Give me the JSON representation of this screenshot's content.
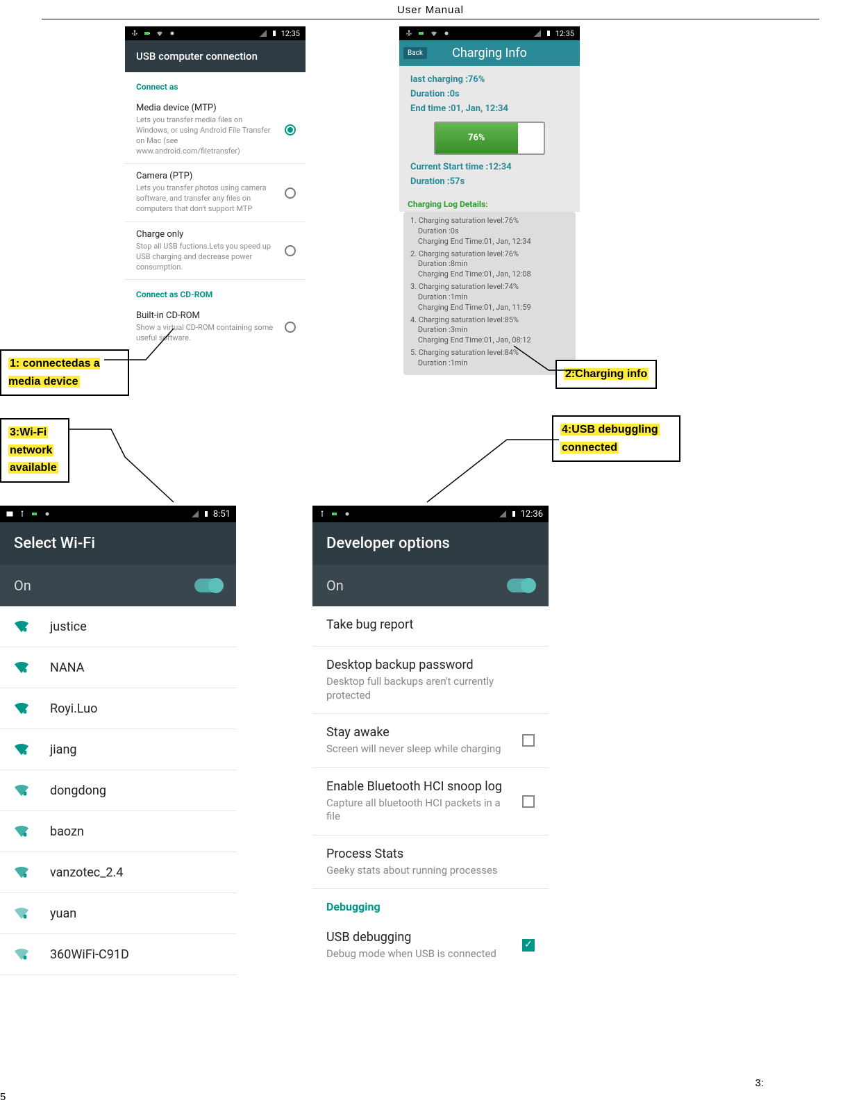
{
  "page_header": "User    Manual",
  "page_number": "5",
  "footer_right": "3:",
  "annotations": {
    "a1": "1:      connectedas      a media    device",
    "a2": "2:Charging info",
    "a3_l1": "3:Wi-Fi",
    "a3_l2": "network",
    "a3_l3": "available",
    "a4_l1": "4:USB    debuggling",
    "a4_l2": "connected"
  },
  "usb_screen": {
    "time": "12:35",
    "title": "USB computer connection",
    "section1": "Connect as",
    "opt1_title": "Media device (MTP)",
    "opt1_sub": "Lets you transfer media files on Windows, or using Android File Transfer on Mac (see www.android.com/filetransfer)",
    "opt2_title": "Camera (PTP)",
    "opt2_sub": "Lets you transfer photos using camera software, and transfer any files on computers that don't support MTP",
    "opt3_title": "Charge only",
    "opt3_sub": "Stop all USB fuctions.Lets you speed up USB charging and decrease power consumption.",
    "section2": "Connect as CD-ROM",
    "opt4_title": "Built-in CD-ROM",
    "opt4_sub": "Show a virtual CD-ROM containing some useful software."
  },
  "charging_screen": {
    "time": "12:35",
    "title": "Charging Info",
    "back": "Back",
    "last": "last charging :76%",
    "dur": "Duration :0s",
    "end": "End time :01, Jan, 12:34",
    "pct": "76%",
    "pct_width": 76,
    "cur_start": "Current Start time :12:34",
    "cur_dur": "Duration :57s",
    "log_hdr": "Charging Log Details:",
    "log": [
      {
        "a": "1. Charging saturation level:76%",
        "b": "Duration :0s",
        "c": "Charging End Time:01, Jan, 12:34"
      },
      {
        "a": "2. Charging saturation level:76%",
        "b": "Duration :8min",
        "c": "Charging End Time:01, Jan, 12:08"
      },
      {
        "a": "3. Charging saturation level:74%",
        "b": "Duration :1min",
        "c": "Charging End Time:01, Jan, 11:59"
      },
      {
        "a": "4. Charging saturation level:85%",
        "b": "Duration :3min",
        "c": "Charging End Time:01, Jan, 08:12"
      },
      {
        "a": "5. Charging saturation level:84%",
        "b": "Duration :1min",
        "c": ""
      }
    ]
  },
  "wifi_screen": {
    "time": "8:51",
    "title": "Select Wi-Fi",
    "on": "On",
    "nets": [
      "justice",
      "NANA",
      "Royi.Luo",
      "jiang",
      "dongdong",
      "baozn",
      "vanzotec_2.4",
      "yuan",
      "360WiFi-C91D"
    ],
    "strength": [
      4,
      4,
      4,
      4,
      3,
      3,
      3,
      2,
      2
    ]
  },
  "dev_screen": {
    "time": "12:36",
    "title": "Developer options",
    "on": "On",
    "r1": "Take bug report",
    "r2t": "Desktop backup password",
    "r2s": "Desktop full backups aren't currently protected",
    "r3t": "Stay awake",
    "r3s": "Screen will never sleep while charging",
    "r4t": "Enable Bluetooth HCI snoop log",
    "r4s": "Capture all bluetooth HCI packets in a file",
    "r5t": "Process Stats",
    "r5s": "Geeky stats about running processes",
    "sec": "Debugging",
    "r6t": "USB debugging",
    "r6s": "Debug mode when USB is connected"
  },
  "colors": {
    "teal": "#009688",
    "appbar": "#2f3b42",
    "ci_header": "#2a8a97",
    "highlight": "#ffec3a"
  }
}
